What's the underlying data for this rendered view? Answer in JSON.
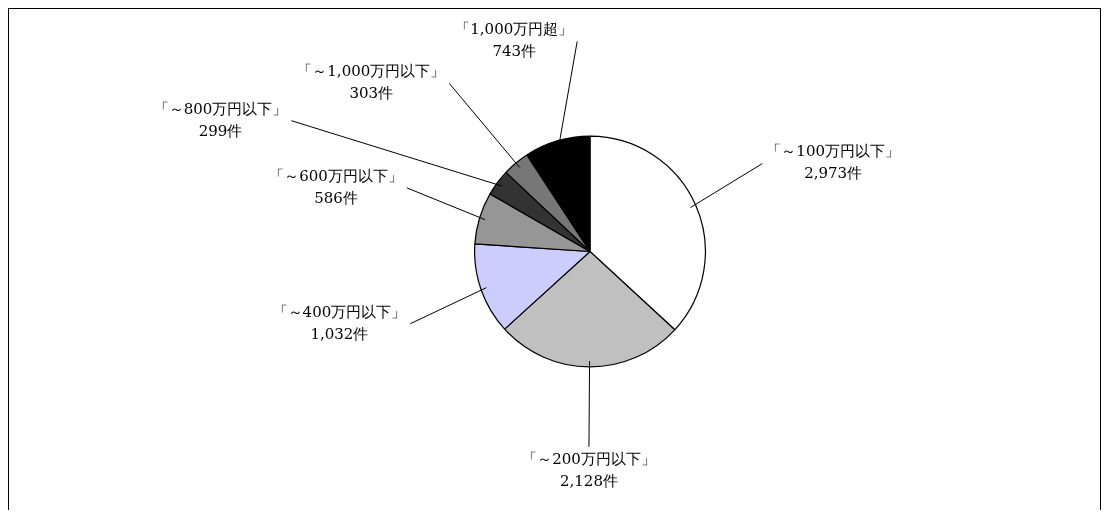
{
  "chart_data": {
    "type": "pie",
    "categories": [
      "「～100万円以下」",
      "「～200万円以下」",
      "「～400万円以下」",
      "「～600万円以下」",
      "「～800万円以下」",
      "「～1,000万円以下」",
      "「1,000万円超」"
    ],
    "values": [
      2973,
      2128,
      1032,
      586,
      299,
      303,
      743
    ],
    "value_labels": [
      "2,973件",
      "2,128件",
      "1,032件",
      "586件",
      "299件",
      "303件",
      "743件"
    ],
    "colors": [
      "#ffffff",
      "#c0c0c0",
      "#ccccff",
      "#969696",
      "#333333",
      "#777777",
      "#000000"
    ],
    "legend": false
  }
}
